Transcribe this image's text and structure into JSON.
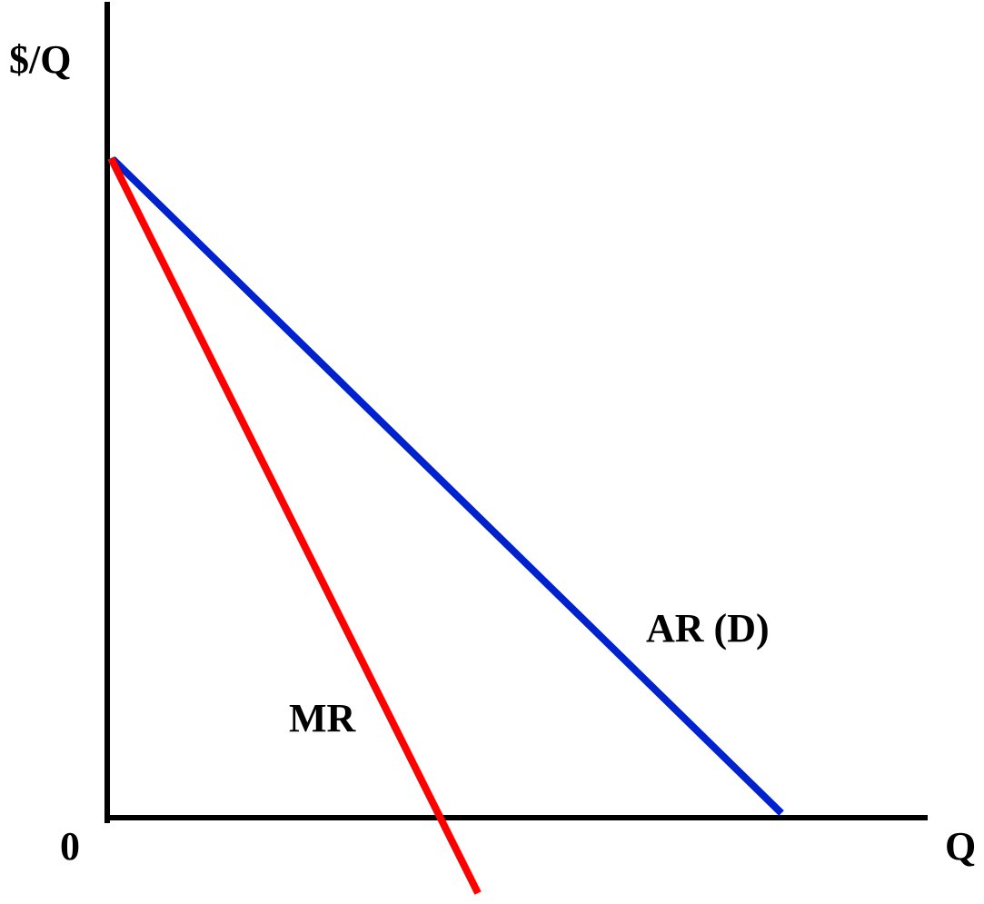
{
  "axes": {
    "y_label": "$/Q",
    "x_label": "Q",
    "origin_label": "0"
  },
  "curves": {
    "ar": {
      "label": "AR (D)",
      "color": "#0022cc"
    },
    "mr": {
      "label": "MR",
      "color": "#ff0000"
    }
  },
  "colors": {
    "axis": "#000000",
    "background": "#ffffff"
  }
}
